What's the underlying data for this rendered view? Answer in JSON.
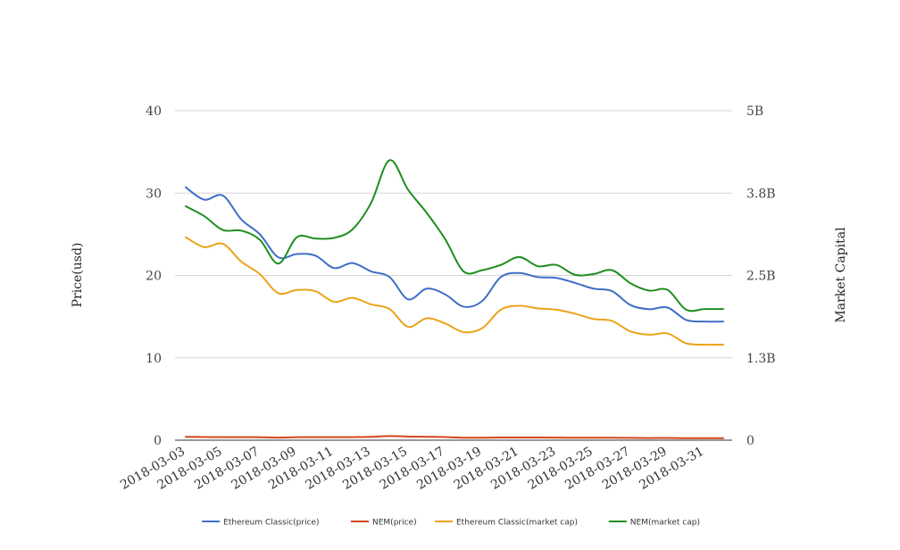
{
  "chart_data": {
    "type": "line",
    "x": [
      "2018-03-03",
      "2018-03-04",
      "2018-03-05",
      "2018-03-06",
      "2018-03-07",
      "2018-03-08",
      "2018-03-09",
      "2018-03-10",
      "2018-03-11",
      "2018-03-12",
      "2018-03-13",
      "2018-03-14",
      "2018-03-15",
      "2018-03-16",
      "2018-03-17",
      "2018-03-18",
      "2018-03-19",
      "2018-03-20",
      "2018-03-21",
      "2018-03-22",
      "2018-03-23",
      "2018-03-24",
      "2018-03-25",
      "2018-03-26",
      "2018-03-27",
      "2018-03-28",
      "2018-03-29",
      "2018-03-30",
      "2018-03-31",
      "2018-04-01"
    ],
    "xticks": [
      "2018-03-03",
      "2018-03-05",
      "2018-03-07",
      "2018-03-09",
      "2018-03-11",
      "2018-03-13",
      "2018-03-15",
      "2018-03-17",
      "2018-03-19",
      "2018-03-21",
      "2018-03-23",
      "2018-03-25",
      "2018-03-27",
      "2018-03-29",
      "2018-03-31"
    ],
    "ylabel_left": "Price(usd)",
    "ylabel_right": "Market Capital",
    "ylim_left": [
      0,
      40
    ],
    "yticks_left": [
      "0",
      "10",
      "20",
      "30",
      "40"
    ],
    "ylim_right": [
      0,
      5000000000
    ],
    "yticks_right": [
      "0",
      "1.3B",
      "2.5B",
      "3.8B",
      "5B"
    ],
    "grid": true,
    "legend_position": "bottom-center",
    "series": [
      {
        "name": "Ethereum Classic(price)",
        "axis": "left",
        "color": "#3f6fc4",
        "values": [
          30.7,
          29.2,
          29.7,
          26.8,
          25.0,
          22.2,
          22.6,
          22.4,
          20.9,
          21.5,
          20.5,
          19.8,
          17.1,
          18.4,
          17.7,
          16.2,
          16.9,
          19.8,
          20.3,
          19.8,
          19.7,
          19.1,
          18.4,
          18.1,
          16.4,
          15.9,
          16.1,
          14.6,
          14.4,
          14.4
        ]
      },
      {
        "name": "NEM(price)",
        "axis": "left",
        "color": "#d4461e",
        "values": [
          0.4,
          0.38,
          0.37,
          0.37,
          0.36,
          0.31,
          0.36,
          0.36,
          0.36,
          0.37,
          0.4,
          0.5,
          0.44,
          0.41,
          0.38,
          0.3,
          0.3,
          0.32,
          0.33,
          0.32,
          0.31,
          0.3,
          0.3,
          0.3,
          0.28,
          0.26,
          0.27,
          0.24,
          0.24,
          0.24
        ]
      },
      {
        "name": "Ethereum Classic(market cap)",
        "axis": "right",
        "color": "#eba31b",
        "values": [
          3080000000,
          2930000000,
          2980000000,
          2710000000,
          2520000000,
          2230000000,
          2280000000,
          2260000000,
          2100000000,
          2160000000,
          2060000000,
          1990000000,
          1720000000,
          1850000000,
          1770000000,
          1640000000,
          1700000000,
          1980000000,
          2040000000,
          2000000000,
          1980000000,
          1920000000,
          1840000000,
          1810000000,
          1650000000,
          1600000000,
          1620000000,
          1470000000,
          1450000000,
          1450000000
        ]
      },
      {
        "name": "NEM(market cap)",
        "axis": "right",
        "color": "#1e8e1e",
        "values": [
          3550000000,
          3400000000,
          3190000000,
          3180000000,
          3040000000,
          2680000000,
          3080000000,
          3060000000,
          3070000000,
          3200000000,
          3600000000,
          4250000000,
          3800000000,
          3450000000,
          3050000000,
          2560000000,
          2580000000,
          2660000000,
          2780000000,
          2640000000,
          2660000000,
          2510000000,
          2520000000,
          2580000000,
          2380000000,
          2270000000,
          2280000000,
          1980000000,
          1990000000,
          1990000000
        ]
      }
    ]
  }
}
